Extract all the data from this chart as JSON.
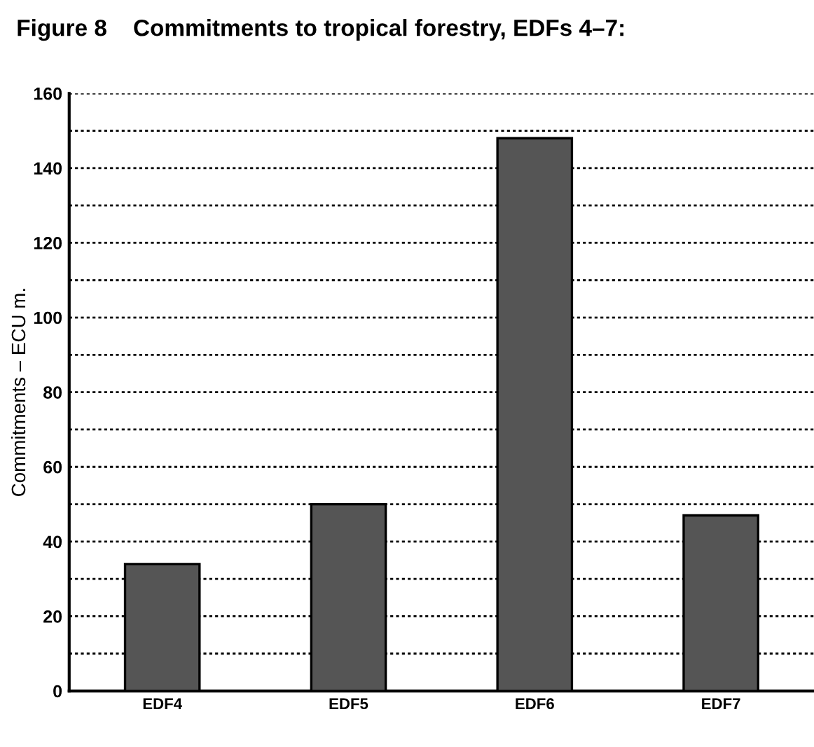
{
  "chart_data": {
    "type": "bar",
    "title": "Figure 8    Commitments to tropical forestry, EDFs 4–7:",
    "ylabel": "Commitments – ECU m.",
    "categories": [
      "EDF4",
      "EDF5",
      "EDF6",
      "EDF7"
    ],
    "values": [
      34,
      50,
      148,
      47
    ],
    "color": "#555555",
    "ylim": [
      0,
      160
    ],
    "yticks": [
      0,
      {
        "value": 10,
        "label": null
      },
      20,
      {
        "value": 30,
        "label": null
      },
      40,
      {
        "value": 50,
        "label": null
      },
      60,
      {
        "value": 70,
        "label": null
      },
      80,
      {
        "value": 90,
        "label": null
      },
      100,
      {
        "value": 110,
        "label": null
      },
      120,
      {
        "value": 130,
        "label": null
      },
      140,
      {
        "value": 150,
        "label": null
      },
      160
    ],
    "grid": "y"
  }
}
